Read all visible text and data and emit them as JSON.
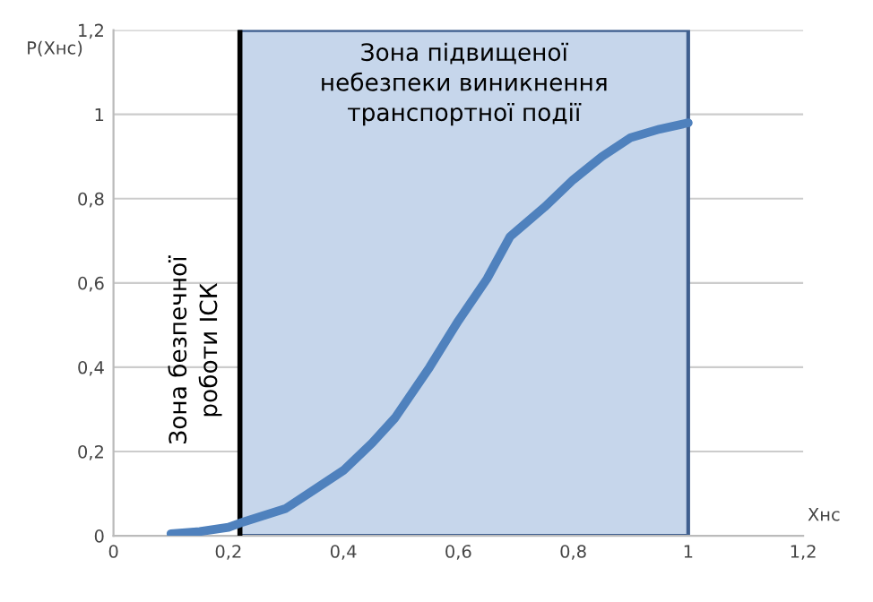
{
  "chart_data": {
    "type": "line",
    "xlabel": "Xнс",
    "ylabel": "P(Xнс)",
    "x": [
      0.1,
      0.15,
      0.2,
      0.22,
      0.3,
      0.35,
      0.4,
      0.45,
      0.49,
      0.55,
      0.6,
      0.65,
      0.69,
      0.75,
      0.8,
      0.85,
      0.9,
      0.95,
      1.0
    ],
    "series": [
      {
        "color": "#4f81bd",
        "values": [
          0.005,
          0.01,
          0.02,
          0.03,
          0.065,
          0.11,
          0.155,
          0.22,
          0.28,
          0.4,
          0.51,
          0.61,
          0.71,
          0.78,
          0.845,
          0.9,
          0.945,
          0.965,
          0.98
        ]
      }
    ],
    "xlim": [
      0,
      1.2
    ],
    "ylim": [
      0,
      1.2
    ],
    "xticks": [
      0,
      {
        "value": 0.2,
        "label": "0,2"
      },
      {
        "value": 0.4,
        "label": "0,4"
      },
      {
        "value": 0.6,
        "label": "0,6"
      },
      {
        "value": 0.8,
        "label": "0,8"
      },
      1,
      {
        "value": 1.2,
        "label": "1,2"
      }
    ],
    "yticks": [
      0,
      {
        "value": 0.2,
        "label": "0,2"
      },
      {
        "value": 0.4,
        "label": "0,4"
      },
      {
        "value": 0.6,
        "label": "0,6"
      },
      {
        "value": 0.8,
        "label": "0,8"
      },
      1,
      {
        "value": 1.2,
        "label": "1,2"
      }
    ],
    "bands": [
      {
        "axis": "x",
        "from": 0.22,
        "to": 1.0,
        "label": "Зона підвищеної\nнебезпеки виникнення\nтранспортної події",
        "color": "#c6d6eb"
      }
    ],
    "ref_lines": [
      {
        "axis": "x",
        "value": 0.22,
        "color": "#000000"
      }
    ],
    "annotations": [
      "Зона безпечної\nроботи ІСК"
    ],
    "grid": "y",
    "marker": "none",
    "line_style": "solid"
  }
}
